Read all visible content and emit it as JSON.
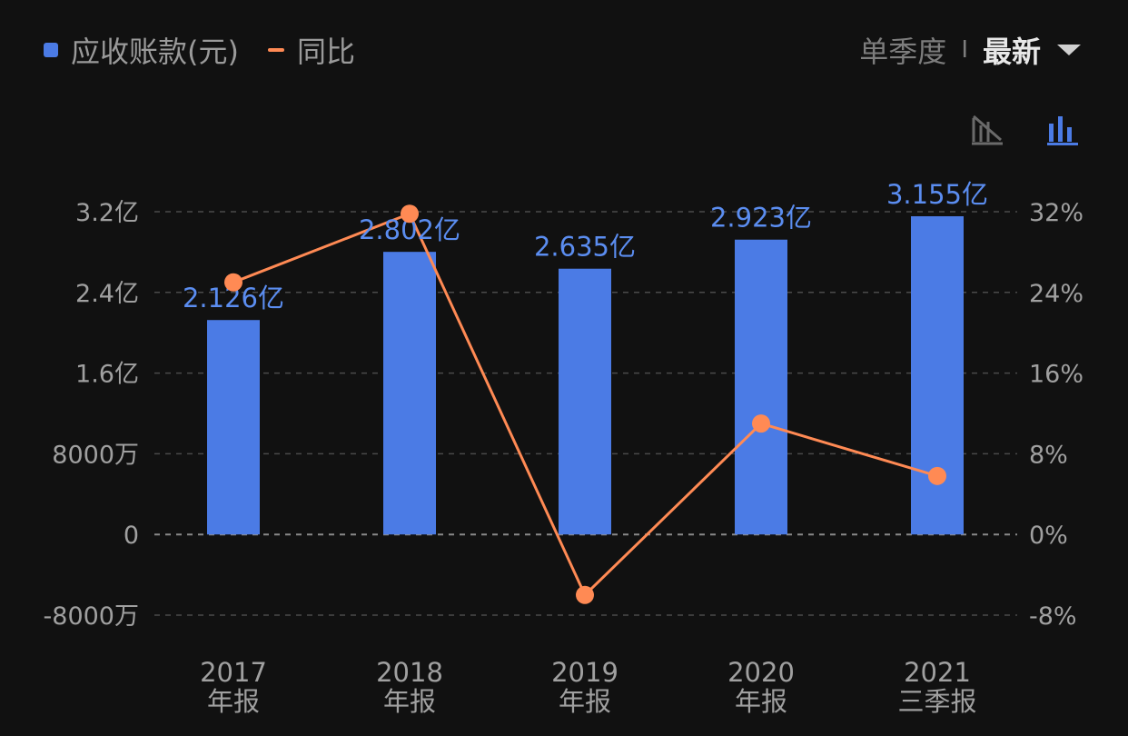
{
  "legend": {
    "bar_label": "应收账款(元)",
    "line_label": "同比"
  },
  "period_switch": {
    "option": "单季度",
    "divider": "I",
    "active": "最新"
  },
  "view_buttons": {
    "line_view_icon": "line-chart-disabled-icon",
    "bar_view_icon": "bar-chart-icon"
  },
  "colors": {
    "bar": "#4b7be5",
    "line": "#ff8a54",
    "bar_label": "#5b8df0",
    "axis_text": "#a0a0a0",
    "grid": "#4a4a4a",
    "zero_line": "#8a8a8a"
  },
  "chart_data": {
    "type": "bar",
    "categories": [
      [
        "2017",
        "年报"
      ],
      [
        "2018",
        "年报"
      ],
      [
        "2019",
        "年报"
      ],
      [
        "2020",
        "年报"
      ],
      [
        "2021",
        "三季报"
      ]
    ],
    "series": [
      {
        "name": "应收账款(元)",
        "type": "bar",
        "axis": "left",
        "values": [
          2.126,
          2.802,
          2.635,
          2.923,
          3.155
        ],
        "unit": "亿",
        "data_labels": [
          "2.126亿",
          "2.802亿",
          "2.635亿",
          "2.923亿",
          "3.155亿"
        ]
      },
      {
        "name": "同比",
        "type": "line",
        "axis": "right",
        "values": [
          25.0,
          31.8,
          -6.0,
          11.0,
          5.8
        ],
        "unit": "%"
      }
    ],
    "y_left": {
      "lim": [
        -0.8,
        3.2
      ],
      "unit": "亿",
      "ticks": [
        {
          "value": 3.2,
          "label": "3.2亿"
        },
        {
          "value": 2.4,
          "label": "2.4亿"
        },
        {
          "value": 1.6,
          "label": "1.6亿"
        },
        {
          "value": 0.8,
          "label": "8000万"
        },
        {
          "value": 0,
          "label": "0"
        },
        {
          "value": -0.8,
          "label": "-8000万"
        }
      ]
    },
    "y_right": {
      "lim": [
        -8,
        32
      ],
      "unit": "%",
      "ticks": [
        {
          "value": 32,
          "label": "32%"
        },
        {
          "value": 24,
          "label": "24%"
        },
        {
          "value": 16,
          "label": "16%"
        },
        {
          "value": 8,
          "label": "8%"
        },
        {
          "value": 0,
          "label": "0%"
        },
        {
          "value": -8,
          "label": "-8%"
        }
      ]
    },
    "grid": true,
    "legend_position": "top-left"
  }
}
